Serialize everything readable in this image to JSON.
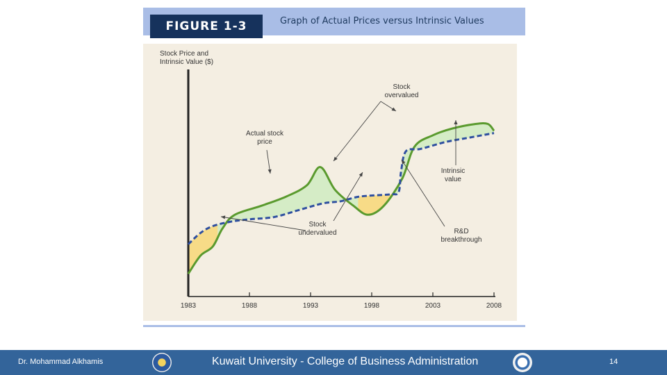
{
  "figure": {
    "label": "FIGURE 1-3",
    "title": "Graph of Actual Prices versus Intrinsic Values"
  },
  "chart_data": {
    "type": "line",
    "ylabel_lines": [
      "Stock Price and",
      "Intrinsic Value ($)"
    ],
    "xlim": [
      1983,
      2008
    ],
    "x_ticks": [
      1983,
      1988,
      1993,
      1998,
      2003,
      2008
    ],
    "series": [
      {
        "name": "Actual stock price",
        "color": "#5a9a2e",
        "style": "solid",
        "points": [
          [
            1983,
            0.1
          ],
          [
            1984,
            0.18
          ],
          [
            1985,
            0.22
          ],
          [
            1985.8,
            0.3
          ],
          [
            1986.8,
            0.36
          ],
          [
            1989,
            0.4
          ],
          [
            1991,
            0.44
          ],
          [
            1992.7,
            0.49
          ],
          [
            1993.8,
            0.57
          ],
          [
            1995,
            0.47
          ],
          [
            1996.5,
            0.4
          ],
          [
            1997.7,
            0.36
          ],
          [
            1999,
            0.4
          ],
          [
            2000.5,
            0.52
          ],
          [
            2001.5,
            0.66
          ],
          [
            2003,
            0.71
          ],
          [
            2004.6,
            0.74
          ],
          [
            2006.5,
            0.76
          ],
          [
            2007.5,
            0.76
          ],
          [
            2008,
            0.73
          ]
        ]
      },
      {
        "name": "Intrinsic value",
        "color": "#2e4fa0",
        "style": "dashed",
        "points": [
          [
            1983,
            0.23
          ],
          [
            1984,
            0.28
          ],
          [
            1985,
            0.31
          ],
          [
            1986.5,
            0.33
          ],
          [
            1988,
            0.34
          ],
          [
            1990,
            0.35
          ],
          [
            1992,
            0.38
          ],
          [
            1994,
            0.41
          ],
          [
            1995.5,
            0.42
          ],
          [
            1997,
            0.44
          ],
          [
            1999.5,
            0.45
          ],
          [
            2000.2,
            0.46
          ],
          [
            2000.4,
            0.55
          ],
          [
            2000.8,
            0.64
          ],
          [
            2002,
            0.65
          ],
          [
            2004,
            0.68
          ],
          [
            2006,
            0.7
          ],
          [
            2008,
            0.72
          ]
        ]
      }
    ],
    "annotations": [
      {
        "lines": [
          "Stock",
          "overvalued"
        ]
      },
      {
        "lines": [
          "Actual stock",
          "price"
        ]
      },
      {
        "lines": [
          "Intrinsic",
          "value"
        ]
      },
      {
        "lines": [
          "Stock",
          "undervalued"
        ]
      },
      {
        "lines": [
          "R&D",
          "breakthrough"
        ]
      }
    ],
    "fill_colors": {
      "overvalued": "#d5ecc6",
      "undervalued": "#f7db87"
    }
  },
  "footer": {
    "author": "Dr. Mohammad Alkhamis",
    "institution": "Kuwait University - College of Business Administration",
    "page": "14",
    "left_logo_icon": "university-seal-icon",
    "right_logo_icon": "accreditation-seal-icon"
  }
}
